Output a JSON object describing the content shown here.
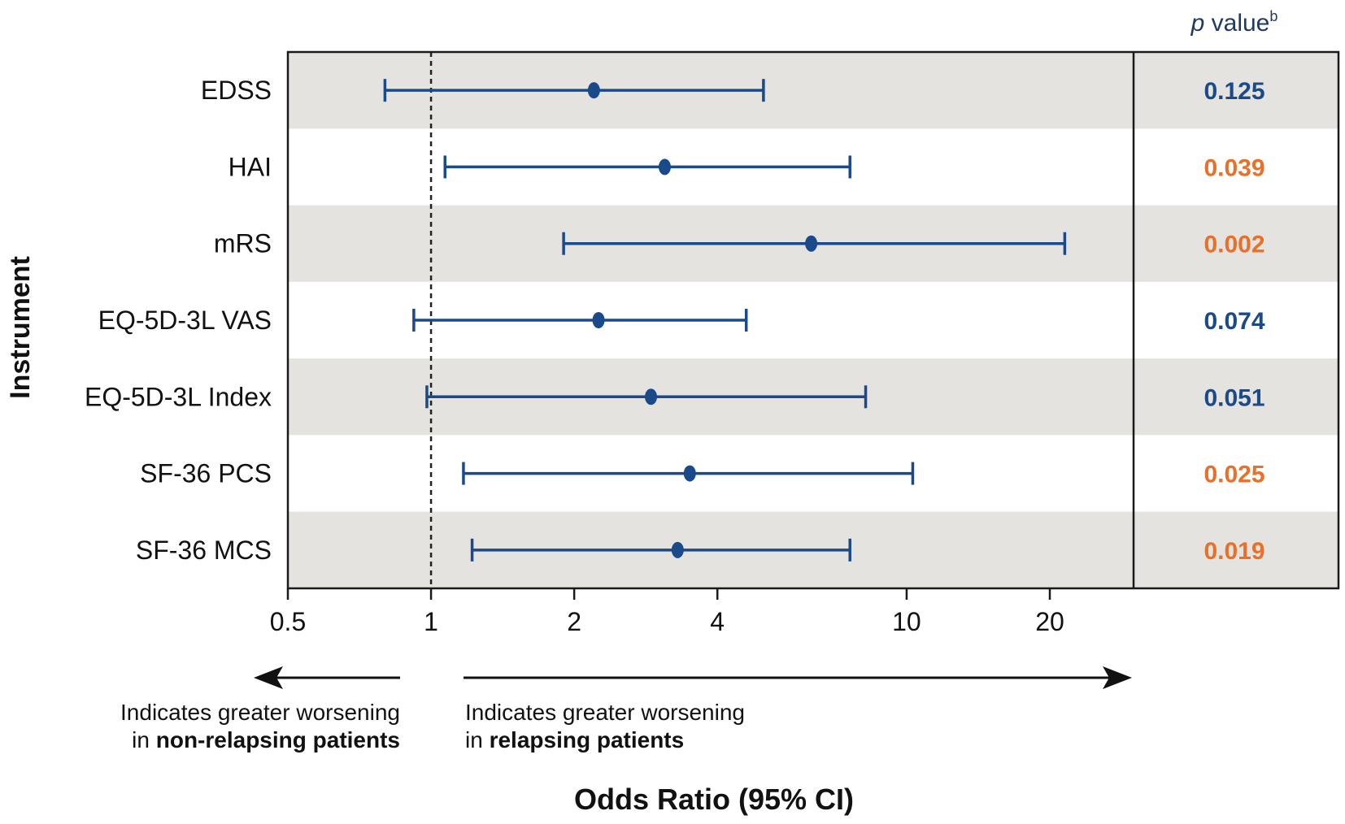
{
  "chart_data": {
    "type": "forest",
    "xlabel": "Odds Ratio (95% CI)",
    "ylabel": "Instrument",
    "x_scale": "log",
    "xlim": [
      0.5,
      30
    ],
    "xticks": [
      0.5,
      1,
      2,
      4,
      10,
      20
    ],
    "xtick_labels": [
      "0.5",
      "1",
      "2",
      "4",
      "10",
      "20"
    ],
    "reference_line": 1,
    "pvalue_header": {
      "italic": "p",
      "text": " value",
      "superscript": "b"
    },
    "rows": [
      {
        "label": "EDSS",
        "or": 2.2,
        "lo": 0.8,
        "hi": 5.0,
        "p": "0.125",
        "significant": false
      },
      {
        "label": "HAI",
        "or": 3.1,
        "lo": 1.07,
        "hi": 7.6,
        "p": "0.039",
        "significant": true
      },
      {
        "label": "mRS",
        "or": 6.3,
        "lo": 1.9,
        "hi": 21.5,
        "p": "0.002",
        "significant": true
      },
      {
        "label": "EQ-5D-3L VAS",
        "or": 2.25,
        "lo": 0.92,
        "hi": 4.6,
        "p": "0.074",
        "significant": false
      },
      {
        "label": "EQ-5D-3L Index",
        "or": 2.9,
        "lo": 0.98,
        "hi": 8.2,
        "p": "0.051",
        "significant": false
      },
      {
        "label": "SF-36 PCS",
        "or": 3.5,
        "lo": 1.17,
        "hi": 10.3,
        "p": "0.025",
        "significant": true
      },
      {
        "label": "SF-36 MCS",
        "or": 3.3,
        "lo": 1.22,
        "hi": 7.6,
        "p": "0.019",
        "significant": true
      }
    ],
    "annotations": {
      "left": {
        "line1": "Indicates greater worsening",
        "prefix": "in ",
        "bold": "non-relapsing patients"
      },
      "right": {
        "line1": "Indicates greater worsening",
        "prefix": "in ",
        "bold": "relapsing patients"
      }
    },
    "colors": {
      "ci_line": "#1b4a8a",
      "p_significant": "#e8702a",
      "p_nonsignificant": "#1b4a8a",
      "band": "#e4e3df",
      "axis": "#1a1a1a",
      "header_text": "#1f3a66"
    }
  }
}
